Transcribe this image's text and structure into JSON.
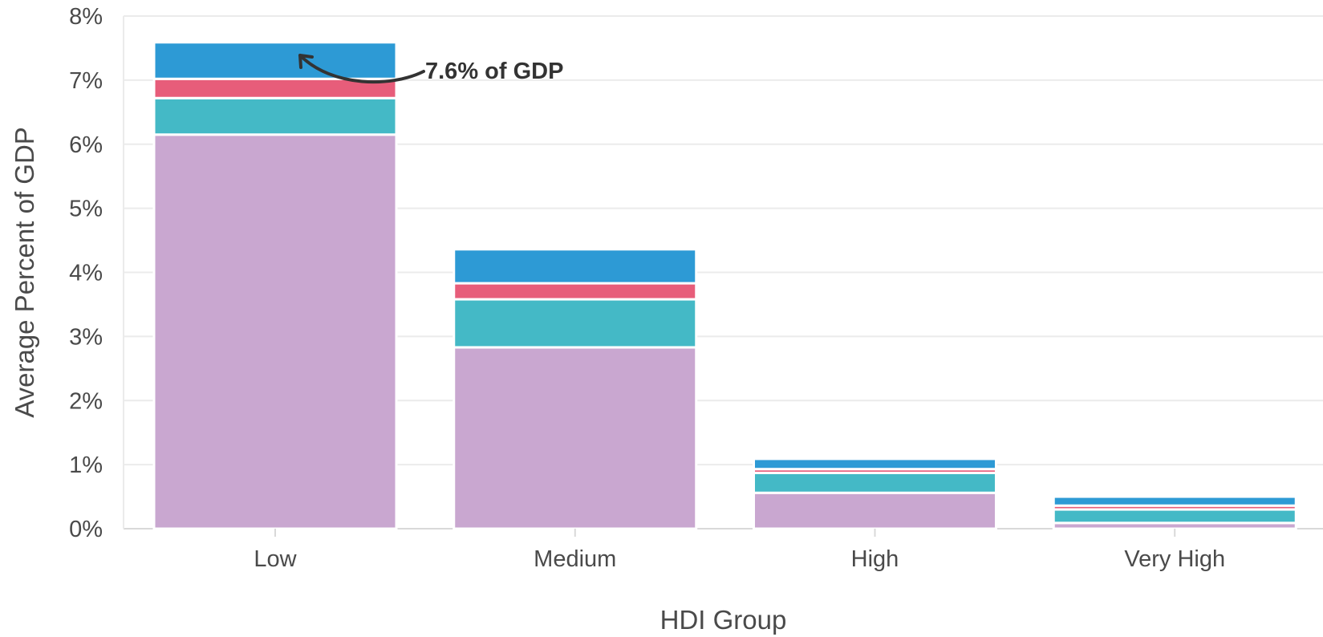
{
  "chart_data": {
    "type": "bar",
    "stacked": true,
    "title": "",
    "xlabel": "HDI Group",
    "ylabel": "Average Percent of GDP",
    "categories": [
      "Low",
      "Medium",
      "High",
      "Very High"
    ],
    "y_ticks": [
      0,
      1,
      2,
      3,
      4,
      5,
      6,
      7,
      8
    ],
    "y_tick_format": "%",
    "ylim": [
      0,
      8
    ],
    "grid": "horizontal",
    "legend": "none",
    "series": [
      {
        "color": "#c9a7d0",
        "values": [
          6.15,
          2.83,
          0.56,
          0.09
        ]
      },
      {
        "color": "#44b9c6",
        "values": [
          0.57,
          0.75,
          0.31,
          0.21
        ]
      },
      {
        "color": "#e75d7a",
        "values": [
          0.3,
          0.25,
          0.06,
          0.06
        ]
      },
      {
        "color": "#2d9ad5",
        "values": [
          0.57,
          0.53,
          0.16,
          0.14
        ]
      }
    ],
    "annotation": {
      "text": "7.6% of GDP",
      "category": "Low"
    }
  },
  "colors": {
    "grid": "#ebebeb",
    "axis": "#d9d9d9",
    "annotation_arrow": "#333333"
  }
}
